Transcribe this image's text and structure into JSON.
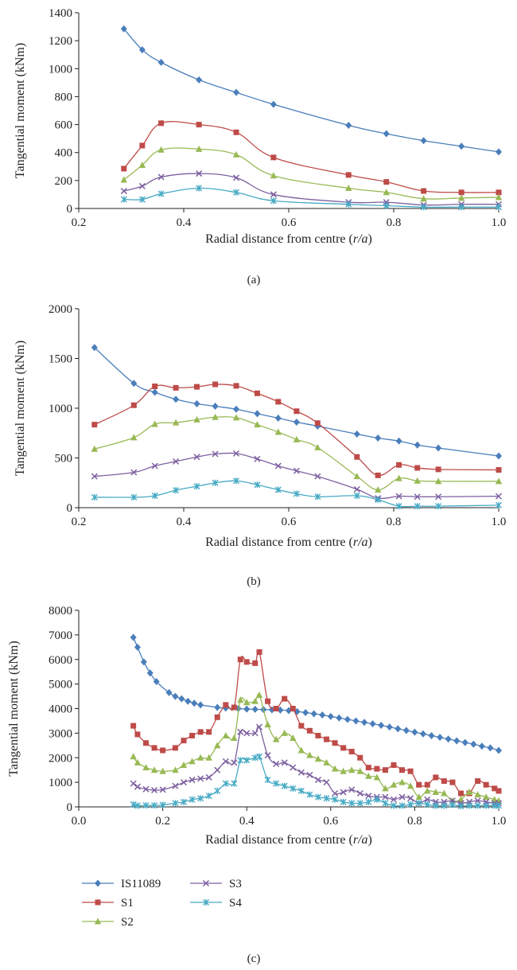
{
  "figure": {
    "legend": {
      "placement": "bottom-left",
      "entries": [
        "IS11089",
        "S1",
        "S2",
        "S3",
        "S4"
      ]
    }
  },
  "series_styles": [
    {
      "name": "IS11089",
      "color": "#4a7ebb",
      "marker": "diamond"
    },
    {
      "name": "S1",
      "color": "#be4b48",
      "marker": "square"
    },
    {
      "name": "S2",
      "color": "#98b954",
      "marker": "triangle"
    },
    {
      "name": "S3",
      "color": "#7d60a0",
      "marker": "x"
    },
    {
      "name": "S4",
      "color": "#46aac4",
      "marker": "star"
    }
  ],
  "chart_data": [
    {
      "type": "line",
      "panel_label": "(a)",
      "xlabel_main": "Radial distance from centre (",
      "xlabel_var": "r/a",
      "xlabel_end": ")",
      "ylabel": "Tangential moment (kNm)",
      "xlim": [
        0.2,
        1.0
      ],
      "ylim": [
        0,
        1400
      ],
      "x_ticks": [
        0.2,
        0.4,
        0.6,
        0.8,
        1.0
      ],
      "x_tick_labels": [
        "0.2",
        "0.4",
        "0.6",
        "0.8",
        "1.0"
      ],
      "y_ticks": [
        0,
        200,
        400,
        600,
        800,
        1000,
        1200,
        1400
      ],
      "y_tick_labels": [
        "0",
        "200",
        "400",
        "600",
        "800",
        "1000",
        "1200",
        "1400"
      ],
      "series": [
        {
          "name": "IS11089",
          "x": [
            0.286,
            0.321,
            0.357,
            0.429,
            0.5,
            0.571,
            0.714,
            0.786,
            0.857,
            0.929,
            1.0
          ],
          "y": [
            1285,
            1135,
            1045,
            920,
            830,
            745,
            595,
            535,
            485,
            445,
            405
          ]
        },
        {
          "name": "S1",
          "x": [
            0.286,
            0.321,
            0.357,
            0.429,
            0.5,
            0.571,
            0.714,
            0.786,
            0.857,
            0.929,
            1.0
          ],
          "y": [
            285,
            450,
            610,
            600,
            545,
            365,
            240,
            190,
            125,
            115,
            115
          ]
        },
        {
          "name": "S2",
          "x": [
            0.286,
            0.321,
            0.357,
            0.429,
            0.5,
            0.571,
            0.714,
            0.786,
            0.857,
            0.929,
            1.0
          ],
          "y": [
            205,
            310,
            420,
            425,
            385,
            235,
            145,
            115,
            70,
            75,
            80
          ]
        },
        {
          "name": "S3",
          "x": [
            0.286,
            0.321,
            0.357,
            0.429,
            0.5,
            0.571,
            0.714,
            0.786,
            0.857,
            0.929,
            1.0
          ],
          "y": [
            125,
            160,
            225,
            250,
            220,
            100,
            45,
            45,
            25,
            30,
            30
          ]
        },
        {
          "name": "S4",
          "x": [
            0.286,
            0.321,
            0.357,
            0.429,
            0.5,
            0.571,
            0.714,
            0.786,
            0.857,
            0.929,
            1.0
          ],
          "y": [
            65,
            65,
            105,
            145,
            115,
            55,
            30,
            20,
            10,
            10,
            10
          ]
        }
      ]
    },
    {
      "type": "line",
      "panel_label": "(b)",
      "xlabel_main": "Radial distance from centre (",
      "xlabel_var": "r/a",
      "xlabel_end": ")",
      "ylabel": "Tangential moment (kNm)",
      "xlim": [
        0.2,
        1.0
      ],
      "ylim": [
        0,
        2000
      ],
      "x_ticks": [
        0.2,
        0.4,
        0.6,
        0.8,
        1.0
      ],
      "x_tick_labels": [
        "0.2",
        "0.4",
        "0.6",
        "0.8",
        "1.0"
      ],
      "y_ticks": [
        0,
        500,
        1000,
        1500,
        2000
      ],
      "y_tick_labels": [
        "0",
        "500",
        "1000",
        "1500",
        "2000"
      ],
      "series": [
        {
          "name": "IS11089",
          "x": [
            0.23,
            0.305,
            0.345,
            0.385,
            0.425,
            0.46,
            0.5,
            0.54,
            0.58,
            0.615,
            0.655,
            0.73,
            0.77,
            0.81,
            0.845,
            0.885,
            1.0
          ],
          "y": [
            1610,
            1250,
            1160,
            1090,
            1045,
            1020,
            990,
            945,
            900,
            860,
            820,
            740,
            700,
            670,
            630,
            600,
            520
          ]
        },
        {
          "name": "S1",
          "x": [
            0.23,
            0.305,
            0.345,
            0.385,
            0.425,
            0.46,
            0.5,
            0.54,
            0.58,
            0.615,
            0.655,
            0.73,
            0.77,
            0.81,
            0.845,
            0.885,
            1.0
          ],
          "y": [
            835,
            1030,
            1220,
            1205,
            1215,
            1240,
            1225,
            1150,
            1065,
            970,
            850,
            510,
            325,
            430,
            400,
            385,
            380
          ]
        },
        {
          "name": "S2",
          "x": [
            0.23,
            0.305,
            0.345,
            0.385,
            0.425,
            0.46,
            0.5,
            0.54,
            0.58,
            0.615,
            0.655,
            0.73,
            0.77,
            0.81,
            0.845,
            0.885,
            1.0
          ],
          "y": [
            590,
            705,
            840,
            855,
            885,
            910,
            905,
            835,
            760,
            685,
            605,
            315,
            180,
            295,
            270,
            265,
            265
          ]
        },
        {
          "name": "S3",
          "x": [
            0.23,
            0.305,
            0.345,
            0.385,
            0.425,
            0.46,
            0.5,
            0.54,
            0.58,
            0.615,
            0.655,
            0.73,
            0.77,
            0.81,
            0.845,
            0.885,
            1.0
          ],
          "y": [
            315,
            355,
            420,
            465,
            510,
            540,
            545,
            490,
            420,
            370,
            315,
            185,
            95,
            115,
            110,
            110,
            115
          ]
        },
        {
          "name": "S4",
          "x": [
            0.23,
            0.305,
            0.345,
            0.385,
            0.425,
            0.46,
            0.5,
            0.54,
            0.58,
            0.615,
            0.655,
            0.73,
            0.77,
            0.81,
            0.845,
            0.885,
            1.0
          ],
          "y": [
            105,
            105,
            120,
            175,
            215,
            250,
            270,
            230,
            180,
            140,
            110,
            120,
            80,
            15,
            15,
            15,
            25
          ]
        }
      ]
    },
    {
      "type": "line",
      "panel_label": "(c)",
      "xlabel_main": "Radial distance from centre (",
      "xlabel_var": "r/a",
      "xlabel_end": ")",
      "ylabel": "Tangential moment (kNm)",
      "xlim": [
        0.0,
        1.0
      ],
      "ylim": [
        0,
        8000
      ],
      "x_ticks": [
        0.0,
        0.2,
        0.4,
        0.6,
        0.8,
        1.0
      ],
      "x_tick_labels": [
        "0.0",
        "0.2",
        "0.4",
        "0.6",
        "0.8",
        "1.0"
      ],
      "y_ticks": [
        0,
        1000,
        2000,
        3000,
        4000,
        5000,
        6000,
        7000,
        8000
      ],
      "y_tick_labels": [
        "0",
        "1000",
        "2000",
        "3000",
        "4000",
        "5000",
        "6000",
        "7000",
        "8000"
      ],
      "series": [
        {
          "name": "IS11089",
          "x": [
            0.13,
            0.14,
            0.155,
            0.17,
            0.185,
            0.215,
            0.23,
            0.245,
            0.26,
            0.275,
            0.29,
            0.33,
            0.35,
            0.38,
            0.4,
            0.42,
            0.44,
            0.46,
            0.48,
            0.5,
            0.52,
            0.54,
            0.56,
            0.58,
            0.6,
            0.62,
            0.64,
            0.66,
            0.68,
            0.7,
            0.72,
            0.74,
            0.76,
            0.78,
            0.8,
            0.82,
            0.84,
            0.86,
            0.88,
            0.9,
            0.92,
            0.94,
            0.96,
            0.98,
            1.0
          ],
          "y": [
            6900,
            6500,
            5900,
            5450,
            5100,
            4650,
            4500,
            4400,
            4300,
            4220,
            4150,
            4050,
            4020,
            4000,
            3980,
            3970,
            3960,
            3950,
            3940,
            3920,
            3880,
            3840,
            3790,
            3740,
            3680,
            3620,
            3560,
            3500,
            3440,
            3380,
            3320,
            3250,
            3180,
            3110,
            3040,
            2970,
            2900,
            2830,
            2760,
            2690,
            2620,
            2550,
            2470,
            2400,
            2300
          ]
        },
        {
          "name": "S1",
          "x": [
            0.13,
            0.14,
            0.16,
            0.18,
            0.2,
            0.23,
            0.25,
            0.27,
            0.29,
            0.31,
            0.33,
            0.35,
            0.37,
            0.385,
            0.4,
            0.42,
            0.43,
            0.45,
            0.47,
            0.49,
            0.51,
            0.53,
            0.55,
            0.57,
            0.59,
            0.61,
            0.63,
            0.65,
            0.67,
            0.69,
            0.71,
            0.73,
            0.75,
            0.77,
            0.79,
            0.81,
            0.83,
            0.85,
            0.87,
            0.89,
            0.91,
            0.93,
            0.95,
            0.97,
            0.99,
            1.0
          ],
          "y": [
            3300,
            2950,
            2600,
            2400,
            2300,
            2400,
            2700,
            2900,
            3050,
            3050,
            3650,
            4150,
            4050,
            6000,
            5900,
            5850,
            6300,
            4300,
            4000,
            4400,
            4000,
            3300,
            3100,
            2900,
            2750,
            2600,
            2400,
            2250,
            2000,
            1600,
            1550,
            1500,
            1700,
            1500,
            1450,
            900,
            900,
            1200,
            1050,
            1000,
            550,
            550,
            1050,
            900,
            750,
            650
          ]
        },
        {
          "name": "S2",
          "x": [
            0.13,
            0.14,
            0.16,
            0.18,
            0.2,
            0.23,
            0.25,
            0.27,
            0.29,
            0.31,
            0.33,
            0.35,
            0.37,
            0.385,
            0.4,
            0.42,
            0.43,
            0.45,
            0.47,
            0.49,
            0.51,
            0.53,
            0.55,
            0.57,
            0.59,
            0.61,
            0.63,
            0.65,
            0.67,
            0.69,
            0.71,
            0.73,
            0.75,
            0.77,
            0.79,
            0.81,
            0.83,
            0.85,
            0.87,
            0.89,
            0.91,
            0.93,
            0.95,
            0.97,
            0.99,
            1.0
          ],
          "y": [
            2050,
            1800,
            1600,
            1500,
            1450,
            1500,
            1700,
            1850,
            2000,
            2000,
            2500,
            2900,
            2800,
            4350,
            4250,
            4300,
            4550,
            3350,
            2750,
            3000,
            2800,
            2300,
            2100,
            1950,
            1800,
            1550,
            1450,
            1500,
            1450,
            1250,
            1200,
            750,
            900,
            1000,
            850,
            400,
            650,
            600,
            550,
            250,
            300,
            600,
            500,
            400,
            300,
            250
          ]
        },
        {
          "name": "S3",
          "x": [
            0.13,
            0.14,
            0.16,
            0.18,
            0.2,
            0.23,
            0.25,
            0.27,
            0.29,
            0.31,
            0.33,
            0.35,
            0.37,
            0.385,
            0.4,
            0.42,
            0.43,
            0.45,
            0.47,
            0.49,
            0.51,
            0.53,
            0.55,
            0.57,
            0.59,
            0.61,
            0.63,
            0.65,
            0.67,
            0.69,
            0.71,
            0.73,
            0.75,
            0.77,
            0.79,
            0.81,
            0.83,
            0.85,
            0.87,
            0.89,
            0.91,
            0.93,
            0.95,
            0.97,
            0.99,
            1.0
          ],
          "y": [
            950,
            820,
            720,
            680,
            700,
            850,
            1000,
            1100,
            1150,
            1200,
            1500,
            1850,
            1800,
            3050,
            3000,
            3000,
            3250,
            2100,
            1750,
            1800,
            1600,
            1400,
            1300,
            1100,
            1000,
            550,
            600,
            700,
            550,
            450,
            400,
            400,
            300,
            400,
            350,
            150,
            300,
            200,
            200,
            250,
            150,
            200,
            250,
            200,
            150,
            150
          ]
        },
        {
          "name": "S4",
          "x": [
            0.13,
            0.14,
            0.16,
            0.18,
            0.2,
            0.23,
            0.25,
            0.27,
            0.29,
            0.31,
            0.33,
            0.35,
            0.37,
            0.385,
            0.4,
            0.42,
            0.43,
            0.45,
            0.47,
            0.49,
            0.51,
            0.53,
            0.55,
            0.57,
            0.59,
            0.61,
            0.63,
            0.65,
            0.67,
            0.69,
            0.71,
            0.73,
            0.75,
            0.77,
            0.79,
            0.81,
            0.83,
            0.85,
            0.87,
            0.89,
            0.91,
            0.93,
            0.95,
            0.97,
            0.99,
            1.0
          ],
          "y": [
            100,
            50,
            60,
            60,
            80,
            150,
            200,
            300,
            350,
            450,
            650,
            950,
            950,
            1900,
            1900,
            2000,
            2050,
            1100,
            950,
            850,
            750,
            650,
            500,
            400,
            350,
            300,
            200,
            150,
            150,
            200,
            300,
            150,
            50,
            50,
            100,
            150,
            100,
            50,
            50,
            80,
            30,
            50,
            50,
            50,
            50,
            50
          ]
        }
      ]
    }
  ]
}
